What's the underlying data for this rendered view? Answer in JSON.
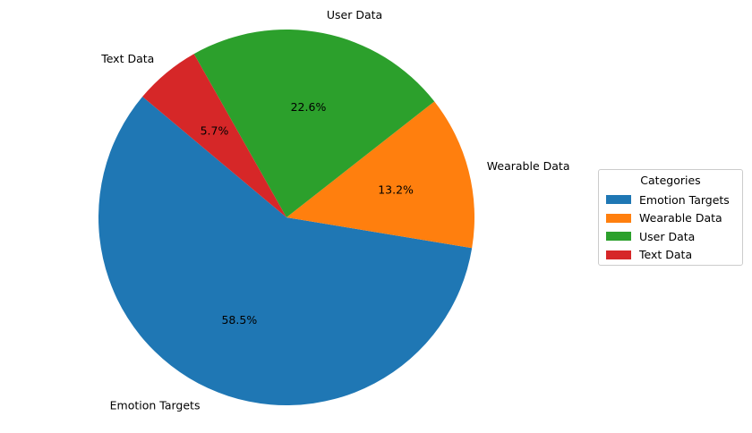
{
  "chart_data": {
    "type": "pie",
    "categories": [
      "Emotion Targets",
      "Wearable Data",
      "User Data",
      "Text Data"
    ],
    "values": [
      58.5,
      13.2,
      22.6,
      5.7
    ],
    "value_labels": [
      "58.5%",
      "13.2%",
      "22.6%",
      "5.7%"
    ],
    "colors": [
      "#1f77b4",
      "#ff7f0e",
      "#2ca02c",
      "#d62728"
    ],
    "start_angle": 140,
    "direction": "counterclockwise",
    "legend": {
      "title": "Categories",
      "placement": "right"
    }
  }
}
